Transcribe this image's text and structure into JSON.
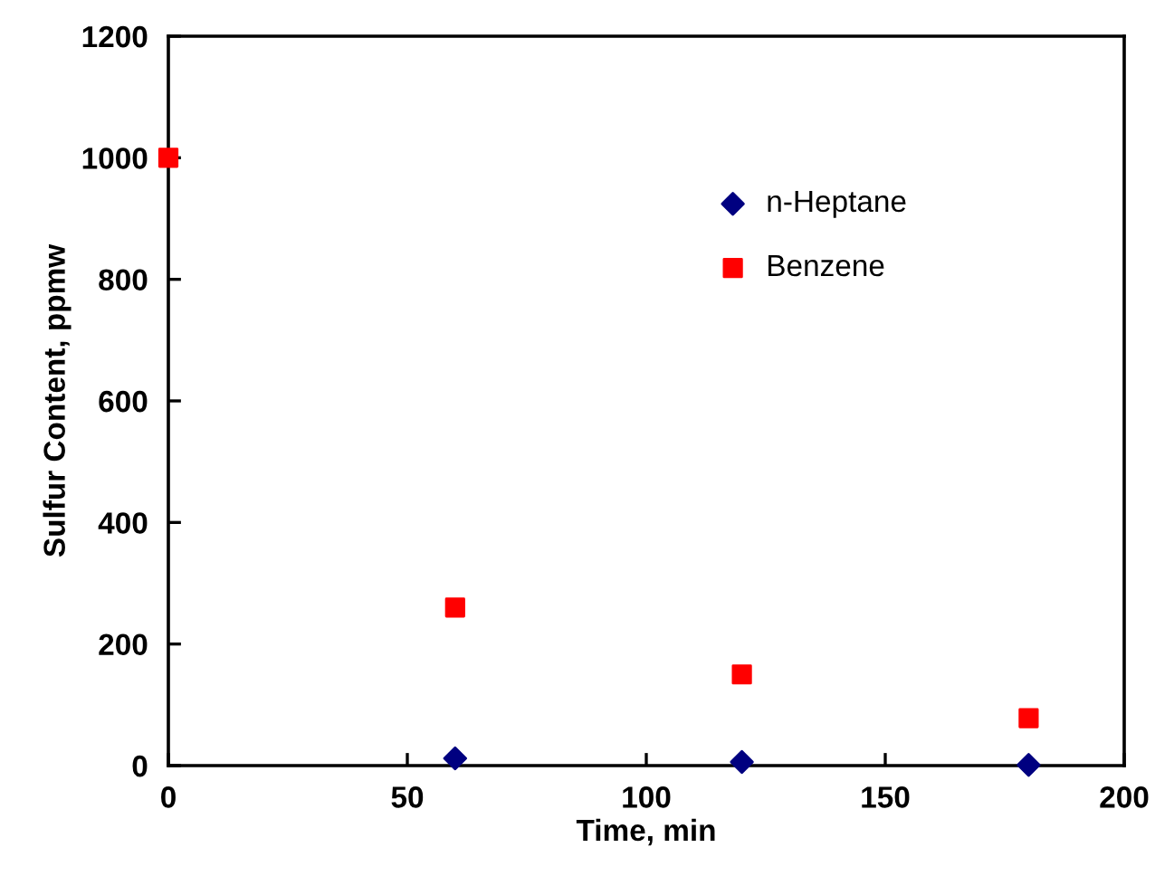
{
  "chart_data": {
    "type": "scatter",
    "xlabel": "Time, min",
    "ylabel": "Sulfur Content, ppmw",
    "series": [
      {
        "name": "n-Heptane",
        "color": "#000080",
        "marker": "diamond",
        "x": [
          60,
          120,
          180
        ],
        "values": [
          12,
          6,
          1
        ]
      },
      {
        "name": "Benzene",
        "color": "#ff0000",
        "marker": "square",
        "x": [
          0,
          60,
          120,
          180
        ],
        "values": [
          1000,
          260,
          150,
          78
        ]
      }
    ],
    "xlim": [
      0,
      200
    ],
    "xticks": [
      0,
      50,
      100,
      150,
      200
    ],
    "ylim": [
      0,
      1200
    ],
    "yticks": [
      0,
      200,
      400,
      600,
      800,
      1000,
      1200
    ],
    "grid": false,
    "legend": "top right"
  }
}
